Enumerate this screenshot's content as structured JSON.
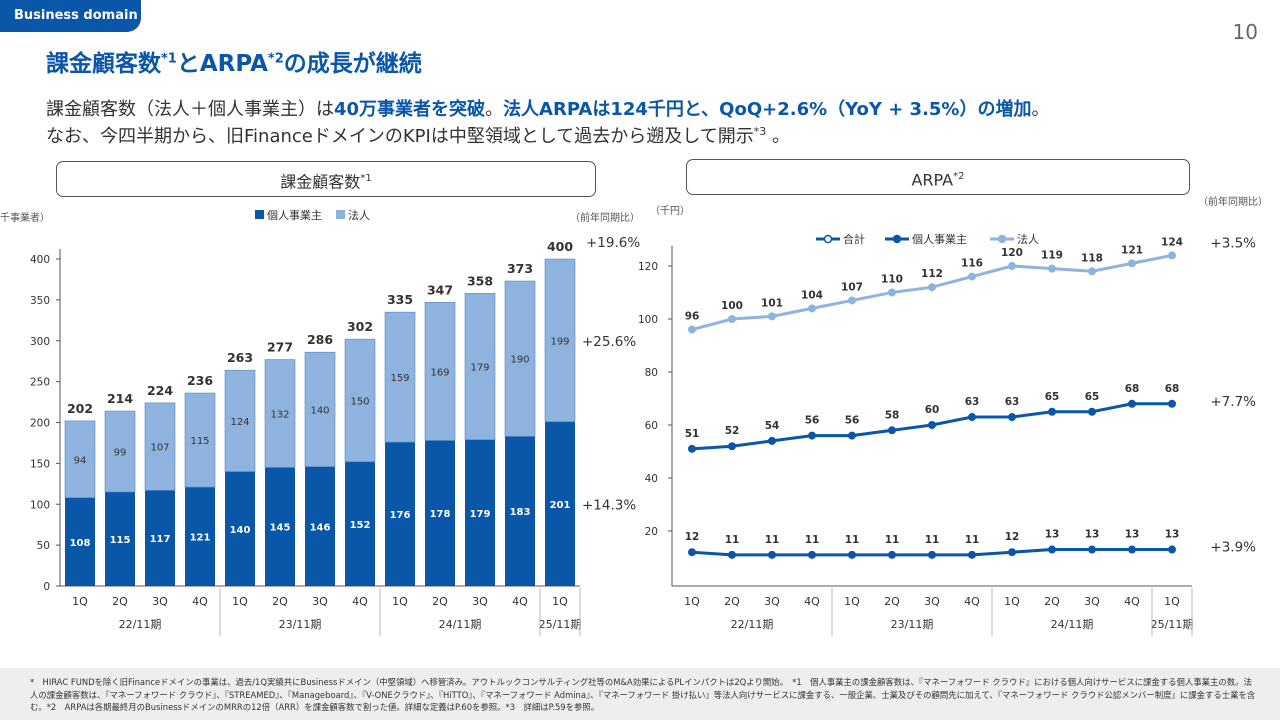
{
  "header": {
    "tag": "Business domain",
    "page_number": "10",
    "title_a": "課金顧客数",
    "title_sup1": "*1",
    "title_b": "とARPA",
    "title_sup2": "*2",
    "title_c": "の成長が継続"
  },
  "subtitle": {
    "l1_a": "課金顧客数（法人＋個人事業主）は",
    "l1_b": "40万事業者を突破",
    "l1_c": "。",
    "l1_d": "法人ARPAは124千円と、QoQ+2.6%（YoY + 3.5%）の増加",
    "l1_e": "。",
    "l2_a": "なお、今四半期から、旧FinanceドメインのKPIは中堅領域として過去から遡及して開示",
    "l2_sup": "*3",
    "l2_b": " 。"
  },
  "left_box": {
    "label": "課金顧客数",
    "sup": "*1"
  },
  "right_box": {
    "label": "ARPA",
    "sup": "*2"
  },
  "footnote": "*　HIRAC FUNDを除く旧Financeドメインの事業は、過去/1Q実績共にBusinessドメイン（中堅領域）へ移管済み。アウトルックコンサルティング社等のM&A効果によるPLインパクトは2Qより開始。　*1　個人事業主の課金顧客数は、『マネーフォワード クラウド』における個人向けサービスに課金する個人事業主の数。法人の課金顧客数は、『マネーフォワード クラウド』、『STREAMED』、『Manageboard』、『V-ONEクラウド』、『HiTTO』、『マネーフォワード Admina』、『マネーフォワード 掛け払い』等法人向けサービスに課金する、一般企業、士業及びその顧問先に加えて、『マネーフォワード クラウド公認メンバー制度』に課金する士業を含む。*2　ARPAは各期最終月のBusinessドメインのMRRの12倍（ARR）を課金顧客数で割った値。詳細な定義はP.60を参照。*3　詳細はP.59を参照。",
  "colors": {
    "brand": "#0a56a8",
    "individual": "#0a56a8",
    "corporate": "#8fb3df",
    "total": "#0a56a8"
  },
  "chart_data": [
    {
      "type": "bar",
      "stacked": true,
      "unit_label": "（千事業者）",
      "yoy_label": "（前年同期比）",
      "categories": [
        "1Q",
        "2Q",
        "3Q",
        "4Q",
        "1Q",
        "2Q",
        "3Q",
        "4Q",
        "1Q",
        "2Q",
        "3Q",
        "4Q",
        "1Q"
      ],
      "groups": [
        {
          "label": "22/11期",
          "count": 4
        },
        {
          "label": "23/11期",
          "count": 4
        },
        {
          "label": "24/11期",
          "count": 4
        },
        {
          "label": "25/11期",
          "count": 1
        }
      ],
      "series": [
        {
          "name": "個人事業主",
          "values": [
            108,
            115,
            117,
            121,
            140,
            145,
            146,
            152,
            176,
            178,
            179,
            183,
            201
          ]
        },
        {
          "name": "法人",
          "values": [
            94,
            99,
            107,
            115,
            124,
            132,
            140,
            150,
            159,
            169,
            179,
            190,
            199
          ]
        }
      ],
      "totals": [
        202,
        214,
        224,
        236,
        263,
        277,
        286,
        302,
        335,
        347,
        358,
        373,
        400
      ],
      "ylim": [
        0,
        420
      ],
      "yticks": [
        0,
        50,
        100,
        150,
        200,
        250,
        300,
        350,
        400
      ],
      "yoy": {
        "total": {
          "value": 400,
          "label": "+19.6%"
        },
        "corporate": {
          "value": 300,
          "label": "+25.6%"
        },
        "individual": {
          "value": 100,
          "label": "+14.3%"
        }
      }
    },
    {
      "type": "line",
      "unit_label": "（千円）",
      "yoy_label": "（前年同期比）",
      "categories": [
        "1Q",
        "2Q",
        "3Q",
        "4Q",
        "1Q",
        "2Q",
        "3Q",
        "4Q",
        "1Q",
        "2Q",
        "3Q",
        "4Q",
        "1Q"
      ],
      "groups": [
        {
          "label": "22/11期",
          "count": 4
        },
        {
          "label": "23/11期",
          "count": 4
        },
        {
          "label": "24/11期",
          "count": 4
        },
        {
          "label": "25/11期",
          "count": 1
        }
      ],
      "legend": [
        "合計",
        "個人事業主",
        "法人"
      ],
      "series": [
        {
          "name": "法人",
          "values": [
            96,
            100,
            101,
            104,
            107,
            110,
            112,
            116,
            120,
            119,
            118,
            121,
            124
          ],
          "yoy": "+3.5%"
        },
        {
          "name": "合計",
          "values": [
            51,
            52,
            54,
            56,
            56,
            58,
            60,
            63,
            63,
            65,
            65,
            68,
            68
          ],
          "yoy": "+7.7%"
        },
        {
          "name": "個人事業主",
          "values": [
            12,
            11,
            11,
            11,
            11,
            11,
            11,
            11,
            12,
            13,
            13,
            13,
            13
          ],
          "yoy": "+3.9%"
        }
      ],
      "ylim": [
        0,
        132
      ],
      "yticks": [
        20,
        40,
        60,
        80,
        100,
        120
      ]
    }
  ]
}
